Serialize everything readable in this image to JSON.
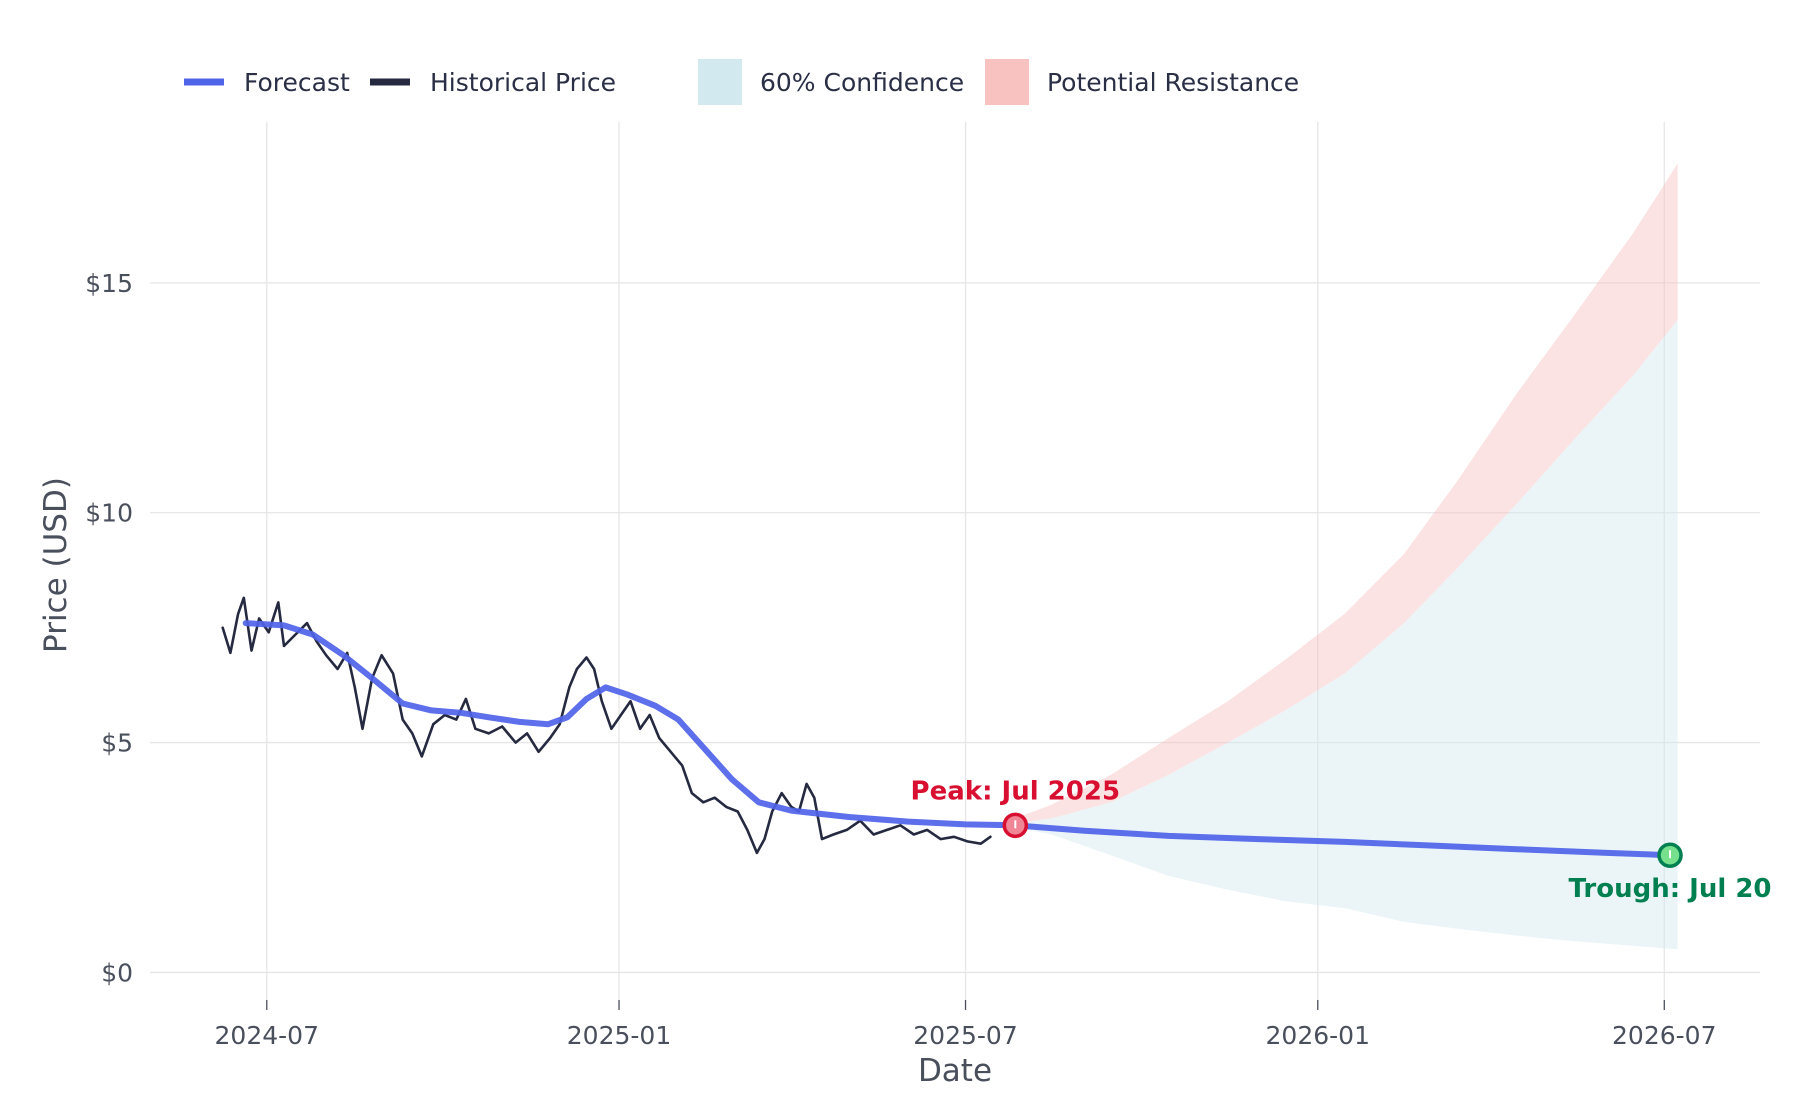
{
  "chart_data": {
    "type": "line",
    "xlabel": "Date",
    "ylabel": "Price (USD)",
    "x_axis_type": "date",
    "xlim": [
      "2024-05-01",
      "2026-08-20"
    ],
    "ylim": [
      -0.6,
      18.5
    ],
    "grid": true,
    "legend_position": "top-left",
    "x_ticks": [
      {
        "date": "2024-07-01",
        "label": "2024-07"
      },
      {
        "date": "2025-01-01",
        "label": "2025-01"
      },
      {
        "date": "2025-07-01",
        "label": "2025-07"
      },
      {
        "date": "2026-01-01",
        "label": "2026-01"
      },
      {
        "date": "2026-07-01",
        "label": "2026-07"
      }
    ],
    "y_ticks": [
      {
        "value": 0,
        "label": "$0"
      },
      {
        "value": 5,
        "label": "$5"
      },
      {
        "value": 10,
        "label": "$10"
      },
      {
        "value": 15,
        "label": "$15"
      }
    ],
    "legend": [
      {
        "name": "Forecast",
        "kind": "line",
        "color": "#4f63e8"
      },
      {
        "name": "Historical Price",
        "kind": "line",
        "color": "#262a40"
      },
      {
        "name": "60% Confidence",
        "kind": "patch",
        "color": "#d3e9f0"
      },
      {
        "name": "Potential Resistance",
        "kind": "patch",
        "color": "#f8c2c1"
      }
    ],
    "series": [
      {
        "name": "Historical Price",
        "color": "#262a40",
        "points": [
          {
            "x": "2024-06-08",
            "y": 7.5
          },
          {
            "x": "2024-06-12",
            "y": 6.95
          },
          {
            "x": "2024-06-16",
            "y": 7.8
          },
          {
            "x": "2024-06-19",
            "y": 8.15
          },
          {
            "x": "2024-06-23",
            "y": 7.0
          },
          {
            "x": "2024-06-27",
            "y": 7.7
          },
          {
            "x": "2024-07-02",
            "y": 7.4
          },
          {
            "x": "2024-07-07",
            "y": 8.05
          },
          {
            "x": "2024-07-10",
            "y": 7.1
          },
          {
            "x": "2024-07-16",
            "y": 7.35
          },
          {
            "x": "2024-07-22",
            "y": 7.6
          },
          {
            "x": "2024-07-27",
            "y": 7.2
          },
          {
            "x": "2024-08-01",
            "y": 6.9
          },
          {
            "x": "2024-08-07",
            "y": 6.6
          },
          {
            "x": "2024-08-12",
            "y": 6.95
          },
          {
            "x": "2024-08-16",
            "y": 6.2
          },
          {
            "x": "2024-08-20",
            "y": 5.3
          },
          {
            "x": "2024-08-25",
            "y": 6.4
          },
          {
            "x": "2024-08-30",
            "y": 6.9
          },
          {
            "x": "2024-09-05",
            "y": 6.5
          },
          {
            "x": "2024-09-10",
            "y": 5.5
          },
          {
            "x": "2024-09-15",
            "y": 5.2
          },
          {
            "x": "2024-09-20",
            "y": 4.7
          },
          {
            "x": "2024-09-26",
            "y": 5.4
          },
          {
            "x": "2024-10-02",
            "y": 5.6
          },
          {
            "x": "2024-10-08",
            "y": 5.5
          },
          {
            "x": "2024-10-13",
            "y": 5.95
          },
          {
            "x": "2024-10-18",
            "y": 5.3
          },
          {
            "x": "2024-10-25",
            "y": 5.2
          },
          {
            "x": "2024-11-01",
            "y": 5.35
          },
          {
            "x": "2024-11-08",
            "y": 5.0
          },
          {
            "x": "2024-11-14",
            "y": 5.2
          },
          {
            "x": "2024-11-20",
            "y": 4.8
          },
          {
            "x": "2024-11-26",
            "y": 5.1
          },
          {
            "x": "2024-12-01",
            "y": 5.4
          },
          {
            "x": "2024-12-06",
            "y": 6.2
          },
          {
            "x": "2024-12-10",
            "y": 6.6
          },
          {
            "x": "2024-12-15",
            "y": 6.85
          },
          {
            "x": "2024-12-19",
            "y": 6.6
          },
          {
            "x": "2024-12-23",
            "y": 5.9
          },
          {
            "x": "2024-12-28",
            "y": 5.3
          },
          {
            "x": "2025-01-02",
            "y": 5.6
          },
          {
            "x": "2025-01-07",
            "y": 5.9
          },
          {
            "x": "2025-01-12",
            "y": 5.3
          },
          {
            "x": "2025-01-17",
            "y": 5.6
          },
          {
            "x": "2025-01-22",
            "y": 5.1
          },
          {
            "x": "2025-01-28",
            "y": 4.8
          },
          {
            "x": "2025-02-03",
            "y": 4.5
          },
          {
            "x": "2025-02-08",
            "y": 3.9
          },
          {
            "x": "2025-02-14",
            "y": 3.7
          },
          {
            "x": "2025-02-20",
            "y": 3.8
          },
          {
            "x": "2025-02-26",
            "y": 3.6
          },
          {
            "x": "2025-03-04",
            "y": 3.5
          },
          {
            "x": "2025-03-09",
            "y": 3.1
          },
          {
            "x": "2025-03-14",
            "y": 2.6
          },
          {
            "x": "2025-03-18",
            "y": 2.9
          },
          {
            "x": "2025-03-22",
            "y": 3.5
          },
          {
            "x": "2025-03-27",
            "y": 3.9
          },
          {
            "x": "2025-04-01",
            "y": 3.6
          },
          {
            "x": "2025-04-05",
            "y": 3.5
          },
          {
            "x": "2025-04-09",
            "y": 4.1
          },
          {
            "x": "2025-04-13",
            "y": 3.8
          },
          {
            "x": "2025-04-17",
            "y": 2.9
          },
          {
            "x": "2025-04-23",
            "y": 3.0
          },
          {
            "x": "2025-04-30",
            "y": 3.1
          },
          {
            "x": "2025-05-07",
            "y": 3.3
          },
          {
            "x": "2025-05-14",
            "y": 3.0
          },
          {
            "x": "2025-05-21",
            "y": 3.1
          },
          {
            "x": "2025-05-28",
            "y": 3.2
          },
          {
            "x": "2025-06-04",
            "y": 3.0
          },
          {
            "x": "2025-06-11",
            "y": 3.1
          },
          {
            "x": "2025-06-18",
            "y": 2.9
          },
          {
            "x": "2025-06-25",
            "y": 2.95
          },
          {
            "x": "2025-07-02",
            "y": 2.85
          },
          {
            "x": "2025-07-09",
            "y": 2.8
          },
          {
            "x": "2025-07-14",
            "y": 2.95
          }
        ]
      },
      {
        "name": "Forecast",
        "color": "#4f63e8",
        "points": [
          {
            "x": "2024-06-20",
            "y": 7.6
          },
          {
            "x": "2024-07-10",
            "y": 7.55
          },
          {
            "x": "2024-07-25",
            "y": 7.35
          },
          {
            "x": "2024-08-10",
            "y": 6.9
          },
          {
            "x": "2024-08-25",
            "y": 6.4
          },
          {
            "x": "2024-09-10",
            "y": 5.85
          },
          {
            "x": "2024-09-25",
            "y": 5.7
          },
          {
            "x": "2024-10-10",
            "y": 5.65
          },
          {
            "x": "2024-10-25",
            "y": 5.55
          },
          {
            "x": "2024-11-10",
            "y": 5.45
          },
          {
            "x": "2024-11-25",
            "y": 5.4
          },
          {
            "x": "2024-12-05",
            "y": 5.55
          },
          {
            "x": "2024-12-15",
            "y": 5.95
          },
          {
            "x": "2024-12-25",
            "y": 6.2
          },
          {
            "x": "2025-01-05",
            "y": 6.05
          },
          {
            "x": "2025-01-20",
            "y": 5.8
          },
          {
            "x": "2025-02-01",
            "y": 5.5
          },
          {
            "x": "2025-02-15",
            "y": 4.85
          },
          {
            "x": "2025-03-01",
            "y": 4.2
          },
          {
            "x": "2025-03-15",
            "y": 3.7
          },
          {
            "x": "2025-04-01",
            "y": 3.52
          },
          {
            "x": "2025-05-01",
            "y": 3.38
          },
          {
            "x": "2025-06-01",
            "y": 3.28
          },
          {
            "x": "2025-07-01",
            "y": 3.22
          },
          {
            "x": "2025-07-27",
            "y": 3.2
          },
          {
            "x": "2025-09-01",
            "y": 3.08
          },
          {
            "x": "2025-10-15",
            "y": 2.97
          },
          {
            "x": "2025-12-01",
            "y": 2.9
          },
          {
            "x": "2026-01-15",
            "y": 2.84
          },
          {
            "x": "2026-03-01",
            "y": 2.76
          },
          {
            "x": "2026-04-15",
            "y": 2.68
          },
          {
            "x": "2026-06-01",
            "y": 2.6
          },
          {
            "x": "2026-07-04",
            "y": 2.55
          }
        ]
      }
    ],
    "bands": [
      {
        "name": "60% Confidence",
        "color": "#d3e9f0",
        "points": [
          {
            "x": "2025-07-27",
            "lo": 3.15,
            "hi": 3.25
          },
          {
            "x": "2025-08-15",
            "lo": 3.0,
            "hi": 3.35
          },
          {
            "x": "2025-09-15",
            "lo": 2.55,
            "hi": 3.7
          },
          {
            "x": "2025-10-15",
            "lo": 2.1,
            "hi": 4.3
          },
          {
            "x": "2025-11-15",
            "lo": 1.8,
            "hi": 5.0
          },
          {
            "x": "2025-12-15",
            "lo": 1.55,
            "hi": 5.7
          },
          {
            "x": "2026-01-15",
            "lo": 1.4,
            "hi": 6.5
          },
          {
            "x": "2026-02-15",
            "lo": 1.1,
            "hi": 7.6
          },
          {
            "x": "2026-03-15",
            "lo": 0.95,
            "hi": 8.8
          },
          {
            "x": "2026-04-15",
            "lo": 0.8,
            "hi": 10.2
          },
          {
            "x": "2026-05-15",
            "lo": 0.68,
            "hi": 11.6
          },
          {
            "x": "2026-06-15",
            "lo": 0.58,
            "hi": 13.0
          },
          {
            "x": "2026-07-08",
            "lo": 0.5,
            "hi": 14.2
          }
        ]
      },
      {
        "name": "Potential Resistance",
        "color": "#f8c2c1",
        "points": [
          {
            "x": "2025-07-27",
            "lo": 3.25,
            "hi": 3.35
          },
          {
            "x": "2025-08-15",
            "lo": 3.35,
            "hi": 3.65
          },
          {
            "x": "2025-09-15",
            "lo": 3.7,
            "hi": 4.3
          },
          {
            "x": "2025-10-15",
            "lo": 4.3,
            "hi": 5.1
          },
          {
            "x": "2025-11-15",
            "lo": 5.0,
            "hi": 5.9
          },
          {
            "x": "2025-12-15",
            "lo": 5.7,
            "hi": 6.8
          },
          {
            "x": "2026-01-15",
            "lo": 6.5,
            "hi": 7.8
          },
          {
            "x": "2026-02-15",
            "lo": 7.6,
            "hi": 9.1
          },
          {
            "x": "2026-03-15",
            "lo": 8.8,
            "hi": 10.7
          },
          {
            "x": "2026-04-15",
            "lo": 10.2,
            "hi": 12.6
          },
          {
            "x": "2026-05-15",
            "lo": 11.6,
            "hi": 14.3
          },
          {
            "x": "2026-06-15",
            "lo": 13.0,
            "hi": 16.1
          },
          {
            "x": "2026-07-08",
            "lo": 14.2,
            "hi": 17.6
          }
        ]
      }
    ],
    "annotations": [
      {
        "name": "peak",
        "text": "Peak: Jul 2025",
        "x": "2025-07-27",
        "y": 3.2,
        "color": "#d80f30",
        "fill": "#f08595",
        "placement": "above"
      },
      {
        "name": "trough",
        "text": "Trough: Jul 20",
        "x": "2026-07-04",
        "y": 2.55,
        "color": "#008050",
        "fill": "#76e08c",
        "placement": "below"
      }
    ]
  }
}
